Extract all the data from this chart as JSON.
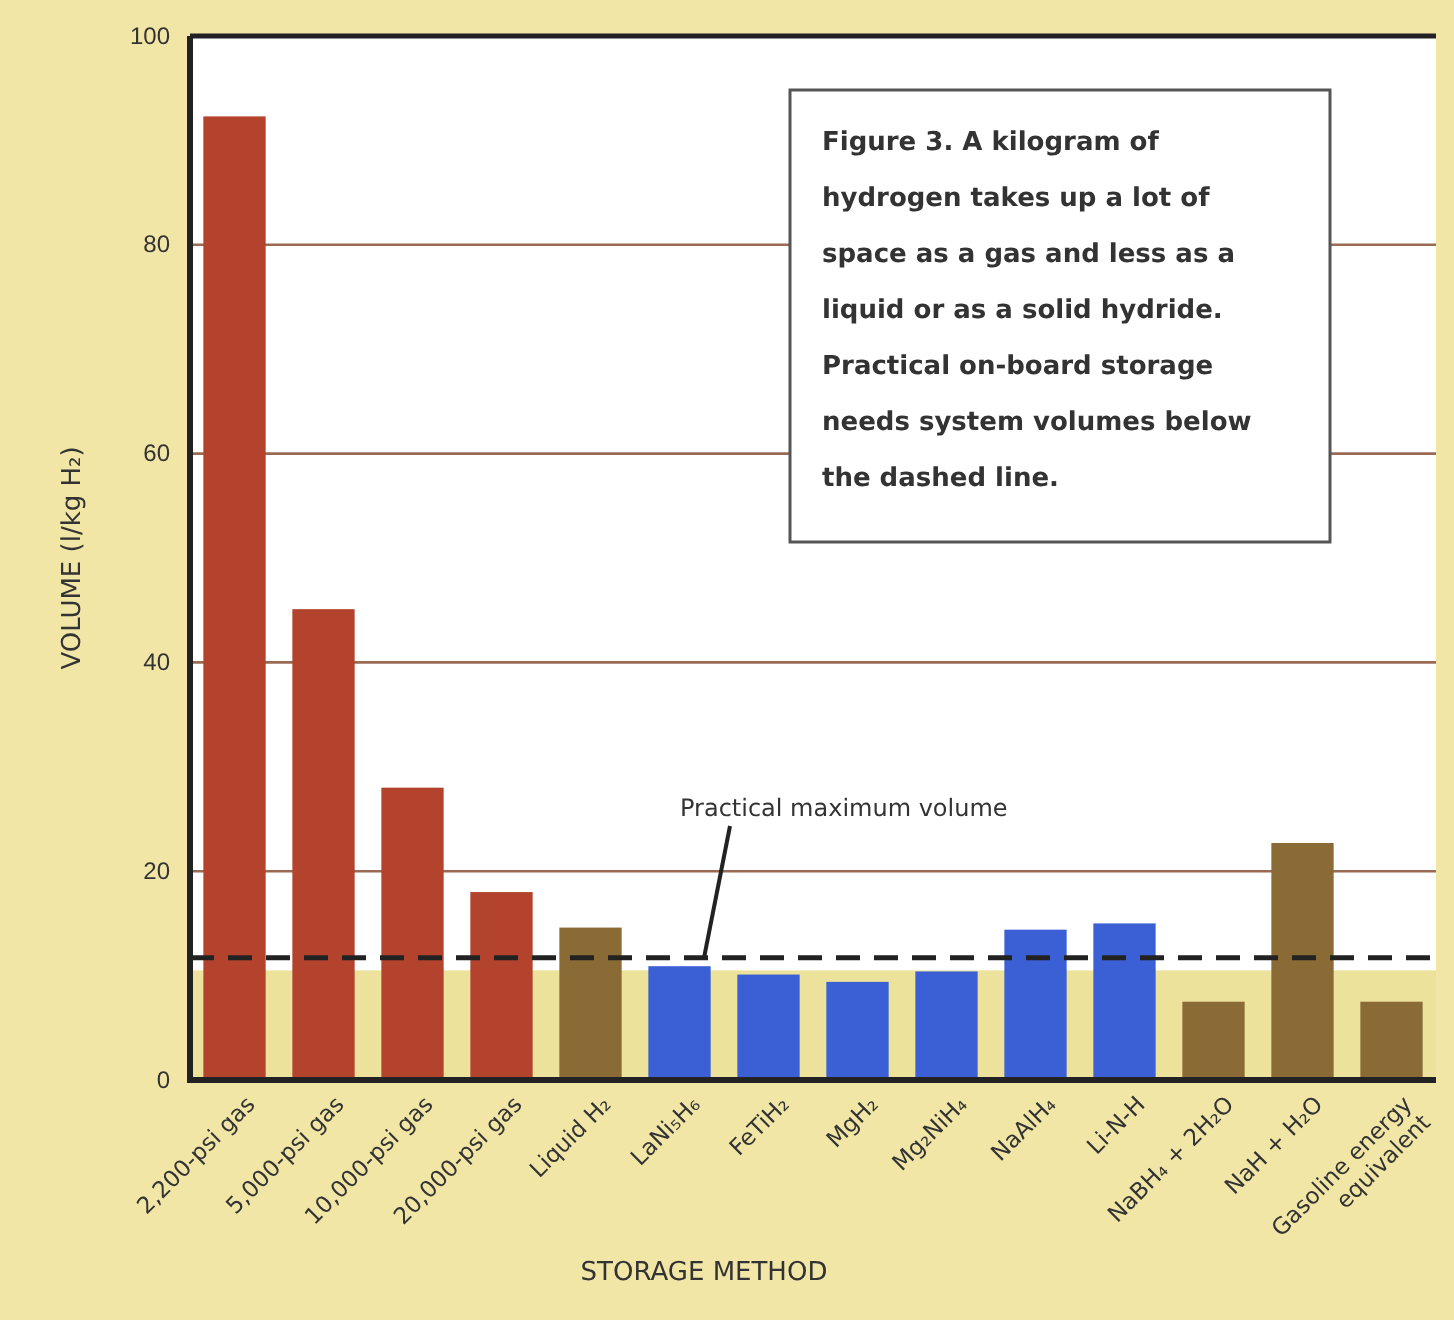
{
  "chart_data": {
    "type": "bar",
    "xlabel": "STORAGE METHOD",
    "ylabel": "VOLUME (l/kg H₂)",
    "categories": [
      "2,200-psi gas",
      "5,000-psi gas",
      "10,000-psi gas",
      "20,000-psi gas",
      "Liquid H₂",
      "LaNi₅H₆",
      "FeTiH₂",
      "MgH₂",
      "Mg₂NiH₄",
      "NaAlH₄",
      "Li-N-H",
      "NaBH₄ + 2H₂O",
      "NaH + H₂O",
      "Gasoline energy equivalent"
    ],
    "values": [
      92.3,
      45.1,
      28.0,
      18.0,
      14.6,
      10.9,
      10.1,
      9.4,
      10.4,
      14.4,
      15.0,
      7.5,
      22.7,
      7.5
    ],
    "colors": [
      "#b3432d",
      "#b3432d",
      "#b3432d",
      "#b3432d",
      "#8a6a35",
      "#3b5fd4",
      "#3b5fd4",
      "#3b5fd4",
      "#3b5fd4",
      "#3b5fd4",
      "#3b5fd4",
      "#8a6a35",
      "#8a6a35",
      "#8a6a35"
    ],
    "ylim": [
      0,
      100
    ],
    "yticks": [
      0,
      20,
      40,
      60,
      80,
      100
    ],
    "grid": "y",
    "ref_lines": [
      {
        "axis": "y",
        "value": 11.7,
        "label": "Practical maximum volume",
        "color": "#222222",
        "line_style": "dashed"
      }
    ],
    "bands": [
      {
        "axis": "y",
        "from": 0,
        "to": 10.5,
        "color": "#ede29c"
      }
    ],
    "annotations": [
      "Figure 3. A kilogram of hydrogen takes up a lot of space as a gas and less as a liquid or as a solid hydride. Practical on-board storage needs system volumes below the dashed line."
    ]
  }
}
